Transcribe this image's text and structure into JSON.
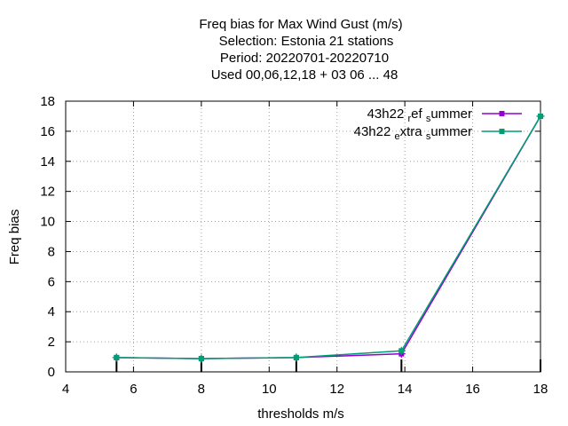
{
  "title_lines": [
    "Freq bias  for Max Wind Gust (m/s)",
    "Selection: Estonia      21 stations",
    "Period: 20220701-20220710",
    "Used  00,06,12,18  + 03 06 ... 48"
  ],
  "chart_data": {
    "type": "line",
    "xlabel": "thresholds m/s",
    "ylabel": "Freq bias",
    "xlim": [
      4,
      18
    ],
    "ylim": [
      0,
      18
    ],
    "xticks": [
      4,
      6,
      8,
      10,
      12,
      14,
      16,
      18
    ],
    "yticks": [
      0,
      2,
      4,
      6,
      8,
      10,
      12,
      14,
      16,
      18
    ],
    "grid": true,
    "legend_position": "top-right",
    "threshold_markers": [
      5.5,
      8,
      10.8,
      13.9,
      18
    ],
    "series": [
      {
        "name_parts": [
          "43h22 ",
          "r",
          "ef ",
          "s",
          "ummer"
        ],
        "color": "#9400d3",
        "x": [
          5.5,
          8.0,
          10.8,
          13.9,
          18.0
        ],
        "y": [
          0.95,
          0.88,
          0.95,
          1.2,
          17.0
        ]
      },
      {
        "name_parts": [
          "43h22 ",
          "e",
          "xtra ",
          "s",
          "ummer"
        ],
        "color": "#009e73",
        "x": [
          5.5,
          8.0,
          10.8,
          13.9,
          18.0
        ],
        "y": [
          0.95,
          0.88,
          0.95,
          1.4,
          17.0
        ]
      }
    ]
  }
}
